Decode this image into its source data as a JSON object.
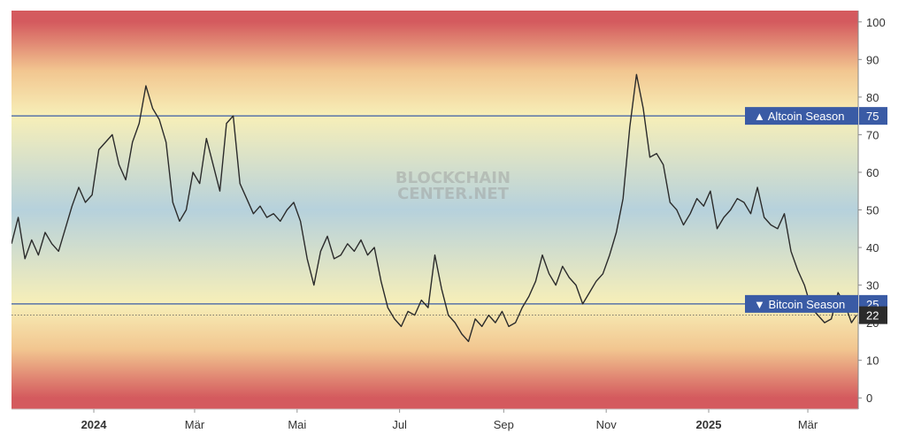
{
  "chart_data": {
    "type": "line",
    "title": "",
    "xlabel": "",
    "ylabel": "",
    "ylim": [
      -3,
      103
    ],
    "y_ticks": [
      100,
      90,
      80,
      70,
      60,
      50,
      40,
      30,
      20,
      10,
      0
    ],
    "x_range": [
      "2023-11-13",
      "2025-03-31"
    ],
    "x_ticks": [
      {
        "label": "2024",
        "date": "2024-01-01",
        "bold": true
      },
      {
        "label": "Mär",
        "date": "2024-03-01",
        "bold": false
      },
      {
        "label": "Mai",
        "date": "2024-05-01",
        "bold": false
      },
      {
        "label": "Jul",
        "date": "2024-07-01",
        "bold": false
      },
      {
        "label": "Sep",
        "date": "2024-09-01",
        "bold": false
      },
      {
        "label": "Nov",
        "date": "2024-11-01",
        "bold": false
      },
      {
        "label": "2025",
        "date": "2025-01-01",
        "bold": true
      },
      {
        "label": "Mär",
        "date": "2025-03-01",
        "bold": false
      }
    ],
    "thresholds": [
      {
        "label": "▲ Altcoin Season",
        "value": 75,
        "color": "#3a5ba5"
      },
      {
        "label": "▼ Bitcoin Season",
        "value": 25,
        "color": "#3a5ba5"
      }
    ],
    "last_value": {
      "value": 22,
      "color": "#2b2b2b"
    },
    "watermark": [
      "BLOCKCHAIN",
      "CENTER.NET"
    ],
    "line_color": "#2b2b2b",
    "gradient_colors": {
      "extreme": "#d45a5e",
      "warm": "#f2c690",
      "light": "#f7efb8",
      "mid": "#b6d1dc"
    },
    "grid": false,
    "series": [
      {
        "name": "",
        "x": [
          "2023-11-13",
          "2023-11-17",
          "2023-11-21",
          "2023-11-25",
          "2023-11-29",
          "2023-12-03",
          "2023-12-07",
          "2023-12-11",
          "2023-12-15",
          "2023-12-19",
          "2023-12-23",
          "2023-12-27",
          "2023-12-31",
          "2024-01-04",
          "2024-01-08",
          "2024-01-12",
          "2024-01-16",
          "2024-01-20",
          "2024-01-24",
          "2024-01-28",
          "2024-02-01",
          "2024-02-05",
          "2024-02-09",
          "2024-02-13",
          "2024-02-17",
          "2024-02-21",
          "2024-02-25",
          "2024-02-29",
          "2024-03-04",
          "2024-03-08",
          "2024-03-12",
          "2024-03-16",
          "2024-03-20",
          "2024-03-24",
          "2024-03-28",
          "2024-04-01",
          "2024-04-05",
          "2024-04-09",
          "2024-04-13",
          "2024-04-17",
          "2024-04-21",
          "2024-04-25",
          "2024-04-29",
          "2024-05-03",
          "2024-05-07",
          "2024-05-11",
          "2024-05-15",
          "2024-05-19",
          "2024-05-23",
          "2024-05-27",
          "2024-05-31",
          "2024-06-04",
          "2024-06-08",
          "2024-06-12",
          "2024-06-16",
          "2024-06-20",
          "2024-06-24",
          "2024-06-28",
          "2024-07-02",
          "2024-07-06",
          "2024-07-10",
          "2024-07-14",
          "2024-07-18",
          "2024-07-22",
          "2024-07-26",
          "2024-07-30",
          "2024-08-03",
          "2024-08-07",
          "2024-08-11",
          "2024-08-15",
          "2024-08-19",
          "2024-08-23",
          "2024-08-27",
          "2024-08-31",
          "2024-09-04",
          "2024-09-08",
          "2024-09-12",
          "2024-09-16",
          "2024-09-20",
          "2024-09-24",
          "2024-09-28",
          "2024-10-02",
          "2024-10-06",
          "2024-10-10",
          "2024-10-14",
          "2024-10-18",
          "2024-10-22",
          "2024-10-26",
          "2024-10-30",
          "2024-11-03",
          "2024-11-07",
          "2024-11-11",
          "2024-11-15",
          "2024-11-19",
          "2024-11-23",
          "2024-11-27",
          "2024-12-01",
          "2024-12-05",
          "2024-12-09",
          "2024-12-13",
          "2024-12-17",
          "2024-12-21",
          "2024-12-25",
          "2024-12-29",
          "2025-01-02",
          "2025-01-06",
          "2025-01-10",
          "2025-01-14",
          "2025-01-18",
          "2025-01-22",
          "2025-01-26",
          "2025-01-30",
          "2025-02-03",
          "2025-02-07",
          "2025-02-11",
          "2025-02-15",
          "2025-02-19",
          "2025-02-23",
          "2025-02-27",
          "2025-03-03",
          "2025-03-07",
          "2025-03-11",
          "2025-03-15",
          "2025-03-19",
          "2025-03-23",
          "2025-03-27",
          "2025-03-30"
        ],
        "values": [
          41,
          48,
          37,
          42,
          38,
          44,
          41,
          39,
          45,
          51,
          56,
          52,
          54,
          66,
          68,
          70,
          62,
          58,
          68,
          73,
          83,
          77,
          74,
          68,
          52,
          47,
          50,
          60,
          57,
          69,
          62,
          55,
          73,
          75,
          57,
          53,
          49,
          51,
          48,
          49,
          47,
          50,
          52,
          47,
          37,
          30,
          39,
          43,
          37,
          38,
          41,
          39,
          42,
          38,
          40,
          31,
          24,
          21,
          19,
          23,
          22,
          26,
          24,
          38,
          29,
          22,
          20,
          17,
          15,
          21,
          19,
          22,
          20,
          23,
          19,
          20,
          24,
          27,
          31,
          38,
          33,
          30,
          35,
          32,
          30,
          25,
          28,
          31,
          33,
          38,
          44,
          53,
          72,
          86,
          77,
          64,
          65,
          62,
          52,
          50,
          46,
          49,
          53,
          51,
          55,
          45,
          48,
          50,
          53,
          52,
          49,
          56,
          48,
          46,
          45,
          49,
          39,
          34,
          30,
          24,
          22,
          20,
          21,
          28,
          25,
          20,
          22
        ]
      }
    ]
  }
}
